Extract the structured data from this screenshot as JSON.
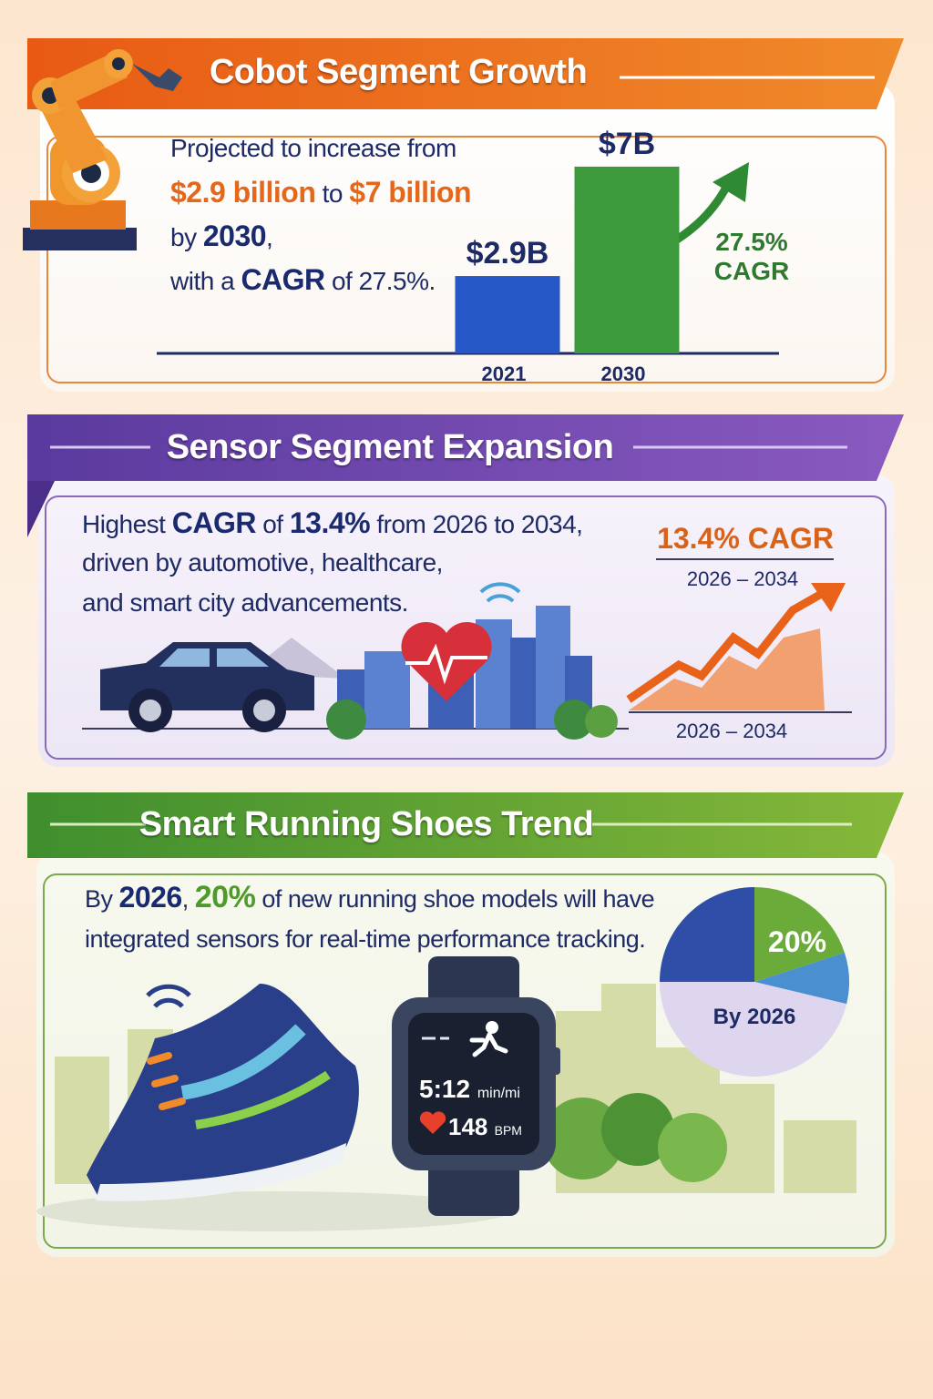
{
  "cobot": {
    "title": "Cobot Segment Growth",
    "text": [
      "Projected to increase from",
      "$2.9 billion",
      "to",
      "$7 billion",
      "by",
      "2030",
      ",",
      "with a",
      "CAGR",
      "of 27.5%."
    ],
    "chart": {
      "type": "bar",
      "categories": [
        "2021",
        "2030"
      ],
      "values": [
        2.9,
        7
      ],
      "value_labels": [
        "$2.9B",
        "$7B"
      ],
      "colors": [
        "#2557c6",
        "#3d9a3c"
      ],
      "annotation": [
        "27.5%",
        "CAGR"
      ]
    }
  },
  "sensor": {
    "title": "Sensor Segment Expansion",
    "text": [
      "Highest",
      "CAGR",
      "of",
      "13.4%",
      "from 2026 to 2034,",
      "driven by automotive, healthcare,",
      "and smart city advancements."
    ],
    "highlight": "13.4% CAGR",
    "period": "2026 – 2034",
    "axis_label": "2026 – 2034"
  },
  "shoes": {
    "title": "Smart Running Shoes Trend",
    "text": [
      "By",
      "2026",
      ",",
      "20%",
      "of new running shoe models will have",
      "integrated sensors for real-time performance tracking."
    ],
    "watch": {
      "pace": "5:12",
      "pace_unit": "min/mi",
      "heart_rate": "148",
      "heart_unit": "BPM"
    },
    "chart": {
      "type": "pie",
      "values": [
        20
      ],
      "value_labels": [
        "20%"
      ],
      "color": "#6aab3a",
      "caption": "By 2026"
    }
  }
}
